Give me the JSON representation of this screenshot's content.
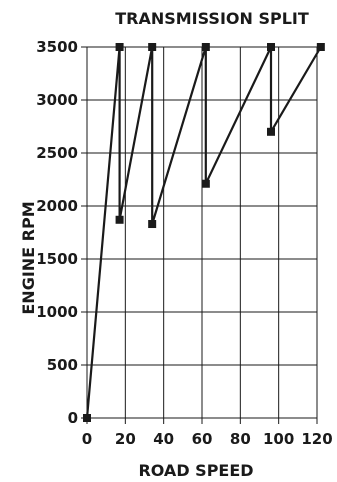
{
  "chart_data": {
    "type": "line",
    "title": "TRANSMISSION SPLIT",
    "xlabel": "ROAD SPEED",
    "ylabel": "ENGINE RPM",
    "xlim": [
      0,
      120
    ],
    "ylim": [
      0,
      3500
    ],
    "x_ticks": [
      "0",
      "20",
      "40",
      "60",
      "80",
      "100",
      "120"
    ],
    "y_ticks": [
      "0",
      "500",
      "1000",
      "1500",
      "2000",
      "2500",
      "3000",
      "3500"
    ],
    "grid": true,
    "legend": "none",
    "series": [
      {
        "points": [
          {
            "x": 0,
            "y": 0
          },
          {
            "x": 17,
            "y": 3500
          },
          {
            "x": 17,
            "y": 1870
          },
          {
            "x": 34,
            "y": 3500
          },
          {
            "x": 34,
            "y": 1830
          },
          {
            "x": 62,
            "y": 3500
          },
          {
            "x": 62,
            "y": 2210
          },
          {
            "x": 96,
            "y": 3500
          },
          {
            "x": 96,
            "y": 2700
          },
          {
            "x": 122,
            "y": 3500
          }
        ]
      }
    ]
  }
}
